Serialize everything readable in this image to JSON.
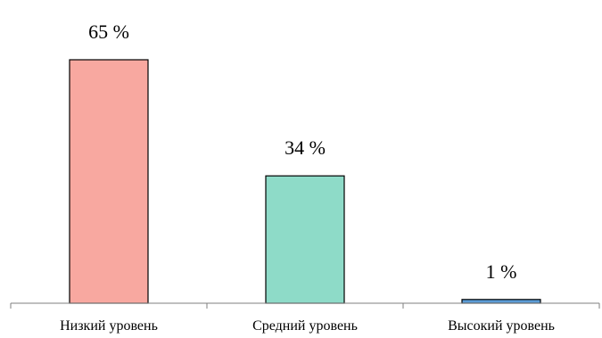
{
  "chart_data": {
    "type": "bar",
    "categories": [
      "Низкий уровень",
      "Средний уровень",
      "Высокий уровень"
    ],
    "values": [
      65,
      34,
      1
    ],
    "data_labels": [
      "65 %",
      "34 %",
      "1 %"
    ],
    "colors": [
      "#F8A8A0",
      "#8EDBC8",
      "#5B9BD5"
    ],
    "axis_color": "#7F7F7F",
    "bar_border_color": "#000000",
    "ylim": [
      0,
      70
    ],
    "grid": false,
    "legend": "none",
    "title": "",
    "xlabel": "",
    "ylabel": ""
  }
}
